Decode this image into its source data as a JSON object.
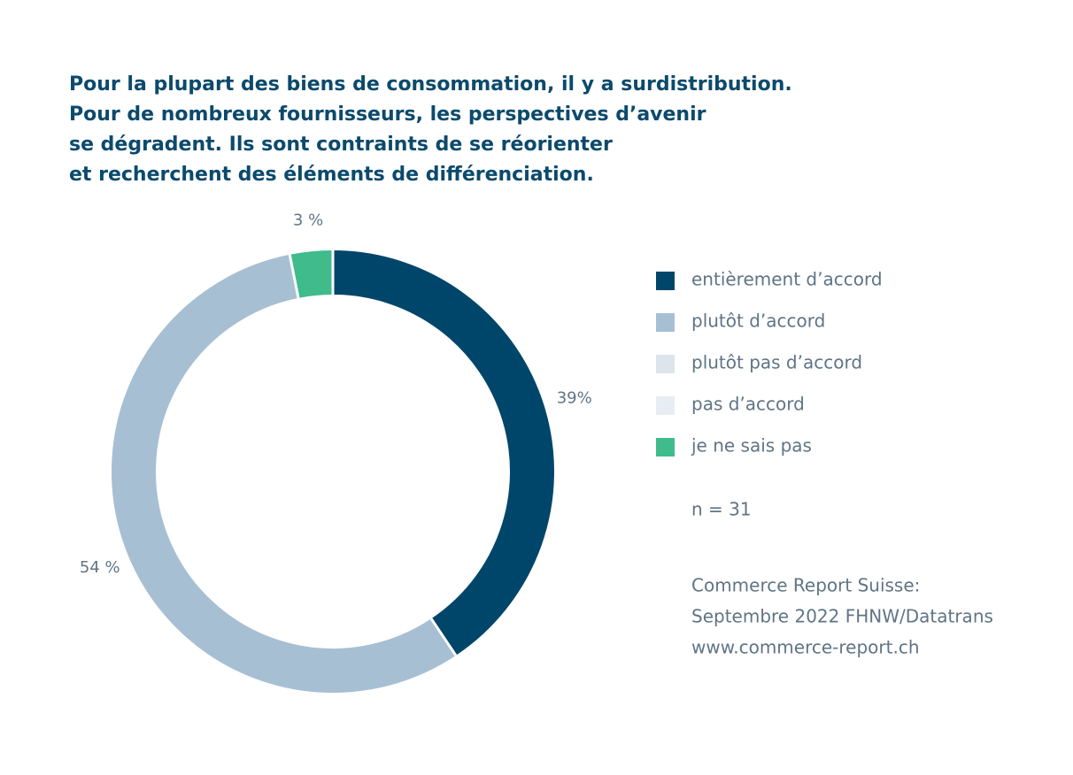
{
  "chart_data": {
    "type": "donut",
    "title": [
      "Pour la plupart des biens de consommation, il y a surdistribution.",
      "Pour de nombreux fournisseurs, les perspectives d’avenir",
      "se dégradent. Ils sont contraints de se réorienter",
      "et recherchent des éléments de différenciation."
    ],
    "categories": [
      "entièrement d’accord",
      "plutôt d’accord",
      "plutôt pas d’accord",
      "pas d’accord",
      "je ne sais pas"
    ],
    "values": [
      39,
      54,
      0,
      0,
      3
    ],
    "value_labels": [
      "39%",
      "54 %",
      null,
      null,
      "3 %"
    ],
    "colors": [
      "#00466a",
      "#a7bfd3",
      "#dde4ec",
      "#e8edf3",
      "#40bb8c"
    ],
    "note": "n = 31",
    "source": [
      "Commerce Report Suisse:",
      "Septembre 2022 FHNW/Datatrans",
      "www.commerce-report.ch"
    ]
  }
}
